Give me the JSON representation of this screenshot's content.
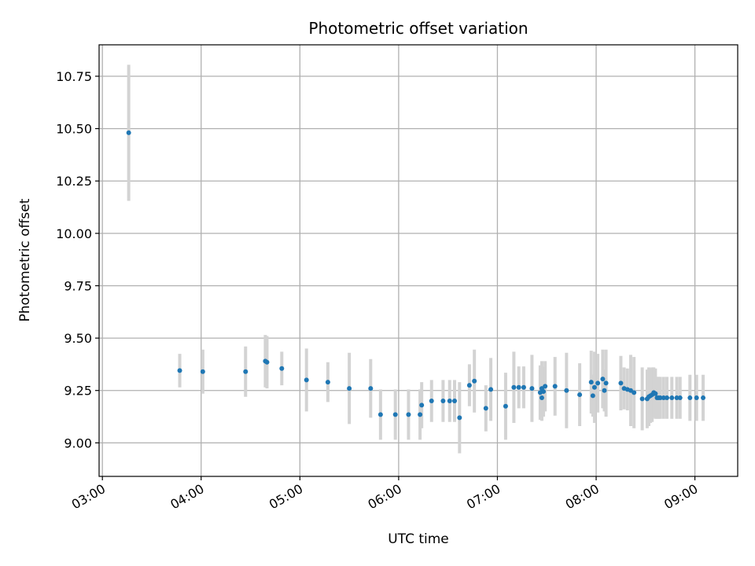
{
  "chart_data": {
    "type": "scatter",
    "title": "Photometric offset variation",
    "xlabel": "UTC time",
    "ylabel": "Photometric offset",
    "grid": true,
    "x_unit": "UTC time (HH:MM)",
    "xlim": [
      "02:58",
      "09:26"
    ],
    "ylim": [
      8.84,
      10.9
    ],
    "x_ticks": [
      "03:00",
      "04:00",
      "05:00",
      "06:00",
      "07:00",
      "08:00",
      "09:00"
    ],
    "y_ticks": [
      "9.00",
      "9.25",
      "9.50",
      "9.75",
      "10.00",
      "10.25",
      "10.50",
      "10.75"
    ],
    "y_tick_values": [
      9.0,
      9.25,
      9.5,
      9.75,
      10.0,
      10.25,
      10.5,
      10.75
    ],
    "colors": {
      "marker": "#1f77b4",
      "errorbar": "#d3d3d3",
      "grid": "#b0b0b0"
    },
    "series": [
      {
        "x": [
          "03:16",
          "03:47",
          "04:01",
          "04:27",
          "04:39",
          "04:40",
          "04:49",
          "05:04",
          "05:17",
          "05:30",
          "05:43",
          "05:49",
          "05:58",
          "06:06",
          "06:13",
          "06:14",
          "06:20",
          "06:27",
          "06:31",
          "06:34",
          "06:37",
          "06:43",
          "06:46",
          "06:53",
          "06:56",
          "07:05",
          "07:10",
          "07:13",
          "07:16",
          "07:21",
          "07:26",
          "07:27",
          "07:27",
          "07:28",
          "07:29",
          "07:35",
          "07:42",
          "07:50",
          "07:57",
          "07:58",
          "07:59",
          "08:01",
          "08:04",
          "08:05",
          "08:06",
          "08:15",
          "08:17",
          "08:19",
          "08:21",
          "08:23",
          "08:28",
          "08:31",
          "08:32",
          "08:33",
          "08:34",
          "08:35",
          "08:36",
          "08:37",
          "08:38",
          "08:39",
          "08:41",
          "08:43",
          "08:46",
          "08:49",
          "08:51",
          "08:57",
          "09:01",
          "09:05"
        ],
        "y": [
          10.48,
          9.345,
          9.34,
          9.34,
          9.39,
          9.385,
          9.355,
          9.3,
          9.29,
          9.26,
          9.26,
          9.135,
          9.135,
          9.135,
          9.135,
          9.18,
          9.2,
          9.2,
          9.2,
          9.2,
          9.12,
          9.275,
          9.295,
          9.165,
          9.255,
          9.175,
          9.265,
          9.265,
          9.265,
          9.26,
          9.24,
          9.215,
          9.26,
          9.245,
          9.27,
          9.27,
          9.25,
          9.23,
          9.29,
          9.225,
          9.265,
          9.285,
          9.305,
          9.25,
          9.285,
          9.285,
          9.26,
          9.255,
          9.25,
          9.24,
          9.21,
          9.21,
          9.22,
          9.225,
          9.23,
          9.24,
          9.235,
          9.215,
          9.215,
          9.215,
          9.215,
          9.215,
          9.215,
          9.215,
          9.215,
          9.215,
          9.215,
          9.215
        ],
        "yerr": [
          0.325,
          0.08,
          0.105,
          0.12,
          0.125,
          0.125,
          0.08,
          0.15,
          0.095,
          0.17,
          0.14,
          0.12,
          0.12,
          0.12,
          0.12,
          0.11,
          0.1,
          0.1,
          0.1,
          0.1,
          0.17,
          0.1,
          0.15,
          0.11,
          0.15,
          0.16,
          0.17,
          0.1,
          0.1,
          0.16,
          0.13,
          0.11,
          0.13,
          0.12,
          0.12,
          0.14,
          0.18,
          0.15,
          0.15,
          0.1,
          0.17,
          0.14,
          0.14,
          0.1,
          0.16,
          0.13,
          0.1,
          0.1,
          0.17,
          0.17,
          0.15,
          0.14,
          0.14,
          0.13,
          0.13,
          0.12,
          0.12,
          0.1,
          0.1,
          0.1,
          0.1,
          0.1,
          0.1,
          0.1,
          0.1,
          0.11,
          0.11,
          0.11
        ]
      }
    ]
  }
}
